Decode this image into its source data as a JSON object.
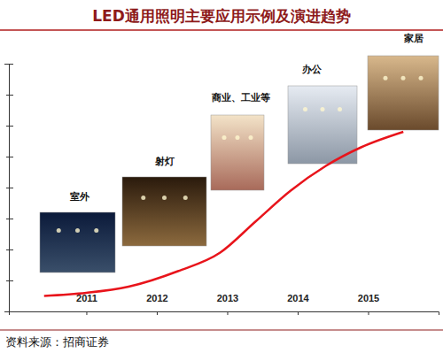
{
  "chart_data": {
    "type": "line",
    "title": "LED通用照明主要应用示例及演进趋势",
    "source": "资料来源：招商证券",
    "x": [
      2010.4,
      2011.0,
      2011.6,
      2012.3,
      2012.9,
      2013.4,
      2013.9,
      2014.4,
      2014.9,
      2015.5
    ],
    "values": [
      0.5,
      0.6,
      0.8,
      1.3,
      1.9,
      2.9,
      3.9,
      4.7,
      5.3,
      5.8
    ],
    "color": "#e8141b",
    "xlim": [
      2009.9,
      2016.0
    ],
    "xticks": [
      2011,
      2012,
      2013,
      2014,
      2015
    ],
    "ylim": [
      0,
      8
    ],
    "yticks": [
      0,
      1,
      2,
      3,
      4,
      5,
      6,
      7,
      8
    ],
    "tick_labels": "x",
    "annotations": [
      "室外",
      "射灯",
      "商业、工业等",
      "办公",
      "家居"
    ]
  }
}
